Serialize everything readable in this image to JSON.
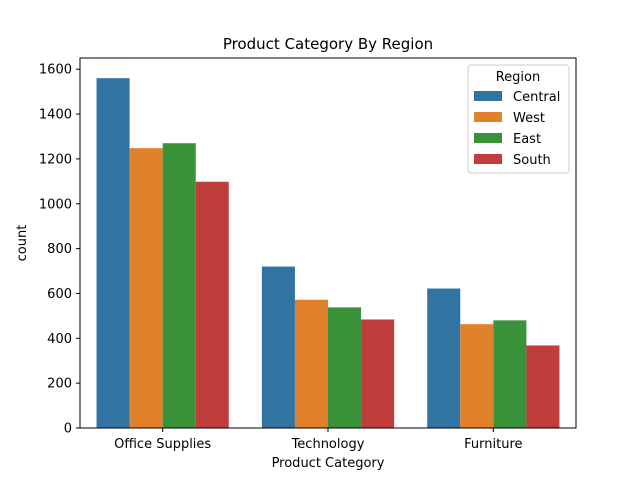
{
  "chart_data": {
    "type": "bar",
    "title": "Product Category By Region",
    "xlabel": "Product Category",
    "ylabel": "count",
    "categories": [
      "Office Supplies",
      "Technology",
      "Furniture"
    ],
    "ylim": [
      0,
      1650
    ],
    "yticks": [
      0,
      200,
      400,
      600,
      800,
      1000,
      1200,
      1400,
      1600
    ],
    "legend": {
      "title": "Region",
      "position": "top-right"
    },
    "series": [
      {
        "name": "Central",
        "color": "#3274a1",
        "values": [
          1560,
          720,
          622
        ]
      },
      {
        "name": "West",
        "color": "#e1812c",
        "values": [
          1248,
          572,
          463
        ]
      },
      {
        "name": "East",
        "color": "#3a923a",
        "values": [
          1270,
          538,
          480
        ]
      },
      {
        "name": "South",
        "color": "#c03d3e",
        "values": [
          1098,
          484,
          368
        ]
      }
    ],
    "grid": false
  }
}
